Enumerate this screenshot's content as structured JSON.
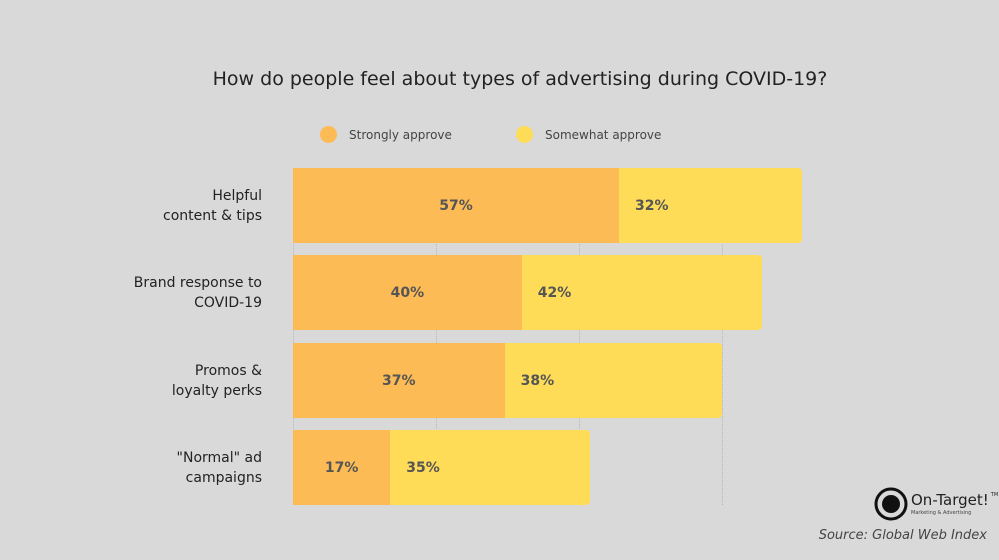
{
  "chart_data": {
    "type": "bar",
    "stacked": true,
    "orientation": "horizontal",
    "title": "How do people feel about types of advertising during COVID-19?",
    "categories": [
      "Helpful content & tips",
      "Brand response to COVID-19",
      "Promos & loyalty perks",
      "\"Normal\" ad campaigns"
    ],
    "category_lines": [
      [
        "Helpful",
        "content & tips"
      ],
      [
        "Brand response to",
        "COVID-19"
      ],
      [
        "Promos &",
        "loyalty perks"
      ],
      [
        "\"Normal\" ad",
        "campaigns"
      ]
    ],
    "series": [
      {
        "name": "Strongly approve",
        "color": "#fdbb55",
        "values": [
          57,
          40,
          37,
          17
        ]
      },
      {
        "name": "Somewhat approve",
        "color": "#fedc58",
        "values": [
          32,
          42,
          38,
          35
        ]
      }
    ],
    "xlim": [
      0,
      100
    ],
    "grid_ticks": [
      0,
      25,
      50,
      75
    ],
    "legend_position": "top",
    "unit": "%"
  },
  "logo": {
    "name": "On-Target!",
    "tagline": "Marketing & Advertising",
    "tm": "TM"
  },
  "source": "Source: Global Web Index"
}
